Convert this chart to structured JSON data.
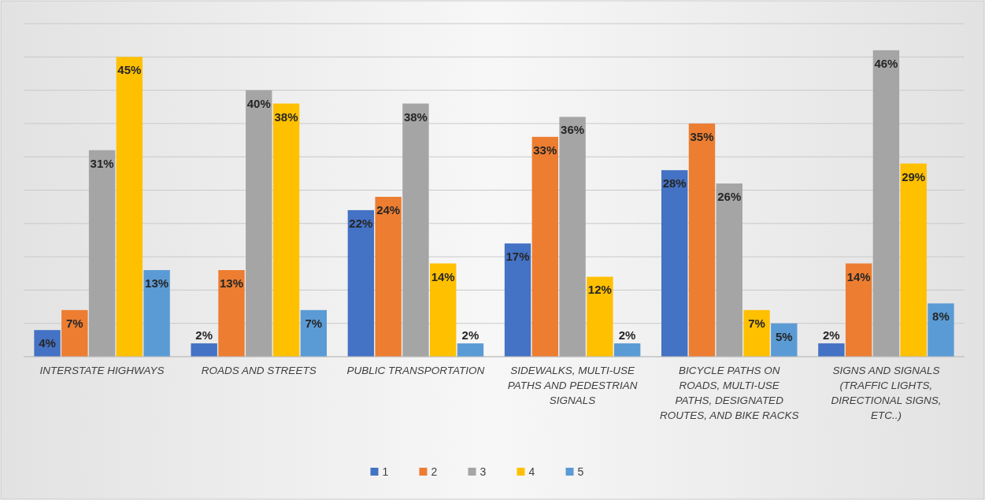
{
  "chart_data": {
    "type": "bar",
    "categories": [
      "INTERSTATE HIGHWAYS",
      "ROADS AND STREETS",
      "PUBLIC TRANSPORTATION",
      "SIDEWALKS, MULTI-USE PATHS AND PEDESTRIAN SIGNALS",
      "BICYCLE PATHS ON ROADS, MULTI-USE PATHS, DESIGNATED ROUTES, AND BIKE RACKS",
      "SIGNS AND SIGNALS (TRAFFIC LIGHTS, DIRECTIONAL SIGNS, ETC..)"
    ],
    "series": [
      {
        "name": "1",
        "color": "#4472c4",
        "values": [
          4,
          2,
          22,
          17,
          28,
          2
        ],
        "value_labels": [
          "4%",
          "2%",
          "22%",
          "17%",
          "28%",
          "2%"
        ]
      },
      {
        "name": "2",
        "color": "#ed7d31",
        "values": [
          7,
          13,
          24,
          33,
          35,
          14
        ],
        "value_labels": [
          "7%",
          "13%",
          "24%",
          "33%",
          "35%",
          "14%"
        ]
      },
      {
        "name": "3",
        "color": "#a5a5a5",
        "values": [
          31,
          40,
          38,
          36,
          26,
          46
        ],
        "value_labels": [
          "31%",
          "40%",
          "38%",
          "36%",
          "26%",
          "46%"
        ]
      },
      {
        "name": "4",
        "color": "#ffc000",
        "values": [
          45,
          38,
          14,
          12,
          7,
          29
        ],
        "value_labels": [
          "45%",
          "38%",
          "14%",
          "12%",
          "7%",
          "29%"
        ]
      },
      {
        "name": "5",
        "color": "#5b9bd5",
        "values": [
          13,
          7,
          2,
          2,
          5,
          8
        ],
        "value_labels": [
          "13%",
          "7%",
          "2%",
          "2%",
          "5%",
          "8%"
        ]
      }
    ],
    "ylim": [
      0,
      50
    ],
    "yticks": [
      {
        "value": 0,
        "label": null
      },
      {
        "value": 5,
        "label": null
      },
      {
        "value": 10,
        "label": null
      },
      {
        "value": 15,
        "label": null
      },
      {
        "value": 20,
        "label": null
      },
      {
        "value": 25,
        "label": null
      },
      {
        "value": 30,
        "label": null
      },
      {
        "value": 35,
        "label": null
      },
      {
        "value": 40,
        "label": null
      },
      {
        "value": 45,
        "label": null
      },
      {
        "value": 50,
        "label": null
      }
    ],
    "grid": "y",
    "legend": "bottom",
    "tick_labels": "x"
  }
}
